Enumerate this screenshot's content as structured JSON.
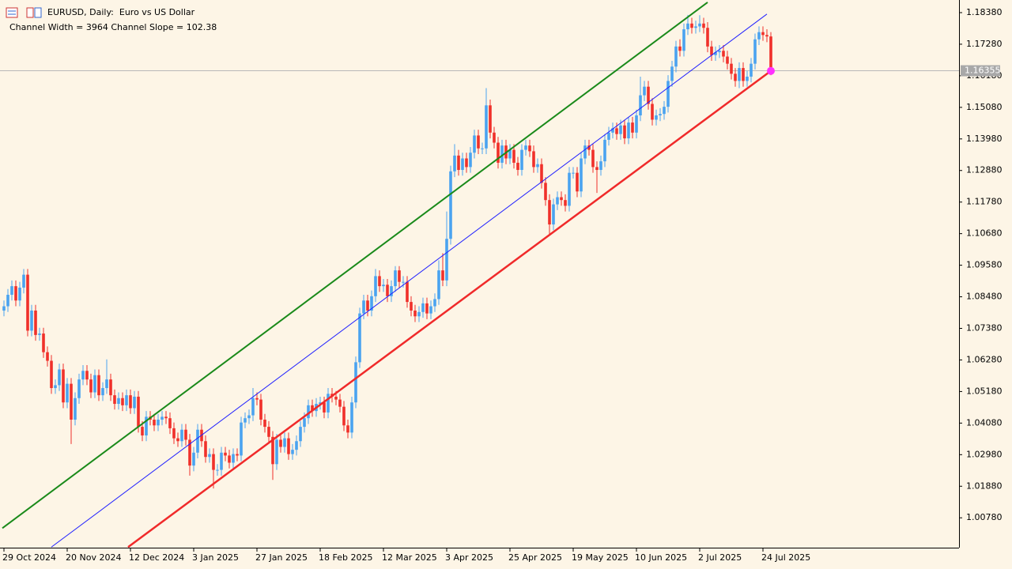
{
  "chart_data": {
    "type": "candlestick",
    "title": "EURUSD, Daily:  Euro vs US Dollar",
    "subtitle": "Channel Width = 3964 Channel Slope = 102.38",
    "up_color": "#4aa3f0",
    "down_color": "#f0302a",
    "background": "#fdf5e6",
    "xlim": [
      -1,
      241.6
    ],
    "ylim": [
      0.9974,
      1.1882
    ],
    "yticks": [
      {
        "value": 1.1838,
        "label": "1.18380"
      },
      {
        "value": 1.1728,
        "label": "1.17280"
      },
      {
        "value": 1.1618,
        "label": "1.16180"
      },
      {
        "value": 1.1508,
        "label": "1.15080"
      },
      {
        "value": 1.1398,
        "label": "1.13980"
      },
      {
        "value": 1.1288,
        "label": "1.12880"
      },
      {
        "value": 1.1178,
        "label": "1.11780"
      },
      {
        "value": 1.1068,
        "label": "1.10680"
      },
      {
        "value": 1.0958,
        "label": "1.09580"
      },
      {
        "value": 1.0848,
        "label": "1.08480"
      },
      {
        "value": 1.0738,
        "label": "1.07380"
      },
      {
        "value": 1.0628,
        "label": "1.06280"
      },
      {
        "value": 1.0518,
        "label": "1.05180"
      },
      {
        "value": 1.0408,
        "label": "1.04080"
      },
      {
        "value": 1.0298,
        "label": "1.02980"
      },
      {
        "value": 1.0188,
        "label": "1.01880"
      },
      {
        "value": 1.0078,
        "label": "1.00780"
      }
    ],
    "xticks": [
      {
        "value": 0,
        "label": "29 Oct 2024"
      },
      {
        "value": 16,
        "label": "20 Nov 2024"
      },
      {
        "value": 32,
        "label": "12 Dec 2024"
      },
      {
        "value": 48,
        "label": "3 Jan 2025"
      },
      {
        "value": 64,
        "label": "27 Jan 2025"
      },
      {
        "value": 80,
        "label": "18 Feb 2025"
      },
      {
        "value": 96,
        "label": "12 Mar 2025"
      },
      {
        "value": 112,
        "label": "3 Apr 2025"
      },
      {
        "value": 128,
        "label": "25 Apr 2025"
      },
      {
        "value": 144,
        "label": "19 May 2025"
      },
      {
        "value": 160,
        "label": "10 Jun 2025"
      },
      {
        "value": 176,
        "label": "2 Jul 2025"
      },
      {
        "value": 192,
        "label": "24 Jul 2025"
      }
    ],
    "current_price": {
      "value": 1.16355,
      "label": "1.16355"
    },
    "channel_lines": [
      {
        "color": "#1a8a1a",
        "width": 2,
        "x": [
          -0.4,
          178
        ],
        "values": [
          1.0042,
          1.1874
        ]
      },
      {
        "color": "#2020ff",
        "width": 1,
        "x": [
          12,
          193
        ],
        "values": [
          0.9976,
          1.1833
        ]
      },
      {
        "color": "#f02a2a",
        "width": 2.5,
        "x": [
          31.4,
          194
        ],
        "values": [
          0.9976,
          1.1635
        ],
        "end_marker_color": "#ff30ff"
      }
    ],
    "ohlc": [
      [
        1.08,
        1.0835,
        1.078,
        1.0815
      ],
      [
        1.0815,
        1.0875,
        1.0795,
        1.0855
      ],
      [
        1.0855,
        1.0905,
        1.0835,
        1.0885
      ],
      [
        1.0885,
        1.0905,
        1.0815,
        1.0835
      ],
      [
        1.0835,
        1.09,
        1.0815,
        1.088
      ],
      [
        1.088,
        1.0945,
        1.086,
        1.0925
      ],
      [
        1.0925,
        1.0945,
        1.071,
        1.073
      ],
      [
        1.073,
        1.082,
        1.071,
        1.08
      ],
      [
        1.08,
        1.082,
        1.0695,
        1.0715
      ],
      [
        1.0715,
        1.074,
        1.0695,
        1.072
      ],
      [
        1.072,
        1.074,
        1.0635,
        1.0655
      ],
      [
        1.0655,
        1.0675,
        1.0605,
        1.0625
      ],
      [
        1.0625,
        1.0645,
        1.051,
        1.053
      ],
      [
        1.053,
        1.056,
        1.051,
        1.054
      ],
      [
        1.054,
        1.0615,
        1.052,
        1.0595
      ],
      [
        1.0595,
        1.0615,
        1.046,
        1.048
      ],
      [
        1.048,
        1.0565,
        1.046,
        1.0545
      ],
      [
        1.0545,
        1.0565,
        1.0335,
        1.042
      ],
      [
        1.042,
        1.0515,
        1.04,
        1.0495
      ],
      [
        1.0495,
        1.058,
        1.0475,
        1.056
      ],
      [
        1.056,
        1.061,
        1.054,
        1.059
      ],
      [
        1.059,
        1.061,
        1.054,
        1.056
      ],
      [
        1.056,
        1.058,
        1.0495,
        1.0515
      ],
      [
        1.0515,
        1.0595,
        1.0495,
        1.0575
      ],
      [
        1.0575,
        1.0595,
        1.0485,
        1.0505
      ],
      [
        1.0505,
        1.055,
        1.0485,
        1.053
      ],
      [
        1.053,
        1.063,
        1.051,
        1.056
      ],
      [
        1.056,
        1.058,
        1.0485,
        1.0505
      ],
      [
        1.0505,
        1.0525,
        1.0455,
        1.0475
      ],
      [
        1.0475,
        1.0515,
        1.0455,
        1.0495
      ],
      [
        1.0495,
        1.0515,
        1.045,
        1.047
      ],
      [
        1.047,
        1.0525,
        1.045,
        1.0505
      ],
      [
        1.0505,
        1.0525,
        1.044,
        1.046
      ],
      [
        1.046,
        1.052,
        1.044,
        1.05
      ],
      [
        1.05,
        1.052,
        1.0375,
        1.0395
      ],
      [
        1.0395,
        1.0415,
        1.0345,
        1.0365
      ],
      [
        1.0365,
        1.045,
        1.0345,
        1.043
      ],
      [
        1.043,
        1.045,
        1.04,
        1.042
      ],
      [
        1.042,
        1.044,
        1.038,
        1.04
      ],
      [
        1.04,
        1.044,
        1.038,
        1.042
      ],
      [
        1.042,
        1.045,
        1.04,
        1.043
      ],
      [
        1.043,
        1.045,
        1.0405,
        1.0425
      ],
      [
        1.0425,
        1.0445,
        1.037,
        1.039
      ],
      [
        1.039,
        1.041,
        1.0335,
        1.0355
      ],
      [
        1.0355,
        1.0375,
        1.0325,
        1.0345
      ],
      [
        1.0345,
        1.0405,
        1.0325,
        1.0385
      ],
      [
        1.0385,
        1.0405,
        1.033,
        1.035
      ],
      [
        1.035,
        1.037,
        1.0225,
        1.026
      ],
      [
        1.026,
        1.0325,
        1.024,
        1.0305
      ],
      [
        1.0305,
        1.0405,
        1.0285,
        1.0385
      ],
      [
        1.0385,
        1.0405,
        1.0325,
        1.0345
      ],
      [
        1.0345,
        1.0365,
        1.027,
        1.029
      ],
      [
        1.029,
        1.032,
        1.027,
        1.03
      ],
      [
        1.03,
        1.032,
        1.018,
        1.0245
      ],
      [
        1.0245,
        1.0265,
        1.0225,
        1.0245
      ],
      [
        1.0245,
        1.0325,
        1.0225,
        1.0305
      ],
      [
        1.0305,
        1.0325,
        1.0275,
        1.0295
      ],
      [
        1.0295,
        1.0315,
        1.025,
        1.027
      ],
      [
        1.027,
        1.032,
        1.025,
        1.03
      ],
      [
        1.03,
        1.032,
        1.0275,
        1.0295
      ],
      [
        1.0295,
        1.043,
        1.0275,
        1.041
      ],
      [
        1.041,
        1.0445,
        1.039,
        1.0425
      ],
      [
        1.0425,
        1.0455,
        1.0405,
        1.0435
      ],
      [
        1.0435,
        1.053,
        1.0415,
        1.0495
      ],
      [
        1.0495,
        1.0515,
        1.047,
        1.049
      ],
      [
        1.049,
        1.051,
        1.04,
        1.042
      ],
      [
        1.042,
        1.044,
        1.0375,
        1.0395
      ],
      [
        1.0395,
        1.0415,
        1.034,
        1.036
      ],
      [
        1.036,
        1.038,
        1.021,
        1.0265
      ],
      [
        1.0265,
        1.037,
        1.0245,
        1.035
      ],
      [
        1.035,
        1.037,
        1.0305,
        1.0325
      ],
      [
        1.0325,
        1.0375,
        1.0305,
        1.0355
      ],
      [
        1.0355,
        1.0375,
        1.028,
        1.03
      ],
      [
        1.03,
        1.0335,
        1.028,
        1.0315
      ],
      [
        1.0315,
        1.0365,
        1.0295,
        1.0345
      ],
      [
        1.0345,
        1.0415,
        1.0325,
        1.0395
      ],
      [
        1.0395,
        1.0445,
        1.0375,
        1.0425
      ],
      [
        1.0425,
        1.049,
        1.0405,
        1.047
      ],
      [
        1.047,
        1.049,
        1.043,
        1.045
      ],
      [
        1.045,
        1.0495,
        1.043,
        1.0475
      ],
      [
        1.0475,
        1.05,
        1.0455,
        1.048
      ],
      [
        1.048,
        1.05,
        1.0425,
        1.0445
      ],
      [
        1.0445,
        1.053,
        1.0425,
        1.051
      ],
      [
        1.051,
        1.053,
        1.048,
        1.05
      ],
      [
        1.05,
        1.052,
        1.047,
        1.049
      ],
      [
        1.049,
        1.051,
        1.0445,
        1.0465
      ],
      [
        1.0465,
        1.0485,
        1.038,
        1.04
      ],
      [
        1.04,
        1.042,
        1.0355,
        1.0375
      ],
      [
        1.0375,
        1.05,
        1.0355,
        1.048
      ],
      [
        1.048,
        1.064,
        1.046,
        1.062
      ],
      [
        1.062,
        1.081,
        1.06,
        1.079
      ],
      [
        1.079,
        1.0855,
        1.077,
        1.0835
      ],
      [
        1.0835,
        1.0855,
        1.078,
        1.08
      ],
      [
        1.08,
        1.087,
        1.078,
        1.085
      ],
      [
        1.085,
        1.0945,
        1.083,
        1.092
      ],
      [
        1.092,
        1.094,
        1.0865,
        1.0885
      ],
      [
        1.0885,
        1.091,
        1.0865,
        1.089
      ],
      [
        1.089,
        1.091,
        1.083,
        1.085
      ],
      [
        1.085,
        1.0905,
        1.083,
        1.0885
      ],
      [
        1.0885,
        1.0955,
        1.0865,
        1.094
      ],
      [
        1.094,
        1.0955,
        1.088,
        1.09
      ],
      [
        1.09,
        1.092,
        1.088,
        1.09
      ],
      [
        1.09,
        1.092,
        1.081,
        1.083
      ],
      [
        1.083,
        1.085,
        1.078,
        1.08
      ],
      [
        1.08,
        1.082,
        1.076,
        1.078
      ],
      [
        1.078,
        1.0815,
        1.076,
        1.0795
      ],
      [
        1.0795,
        1.0845,
        1.0775,
        1.0825
      ],
      [
        1.0825,
        1.0845,
        1.077,
        1.079
      ],
      [
        1.079,
        1.0835,
        1.077,
        1.0815
      ],
      [
        1.0815,
        1.086,
        1.0795,
        1.084
      ],
      [
        1.084,
        1.0975,
        1.082,
        1.094
      ],
      [
        1.094,
        1.1,
        1.0885,
        1.0905
      ],
      [
        1.0905,
        1.1145,
        1.0885,
        1.105
      ],
      [
        1.105,
        1.1305,
        1.103,
        1.1285
      ],
      [
        1.1285,
        1.138,
        1.1265,
        1.134
      ],
      [
        1.134,
        1.136,
        1.127,
        1.129
      ],
      [
        1.129,
        1.135,
        1.127,
        1.133
      ],
      [
        1.133,
        1.135,
        1.128,
        1.13
      ],
      [
        1.13,
        1.137,
        1.128,
        1.135
      ],
      [
        1.135,
        1.143,
        1.133,
        1.141
      ],
      [
        1.141,
        1.143,
        1.1345,
        1.1365
      ],
      [
        1.1365,
        1.1385,
        1.1345,
        1.1365
      ],
      [
        1.1365,
        1.1575,
        1.1345,
        1.1515
      ],
      [
        1.1515,
        1.1535,
        1.14,
        1.142
      ],
      [
        1.142,
        1.144,
        1.1365,
        1.1385
      ],
      [
        1.1385,
        1.1405,
        1.1295,
        1.1315
      ],
      [
        1.1315,
        1.1395,
        1.1295,
        1.1375
      ],
      [
        1.1375,
        1.1395,
        1.131,
        1.133
      ],
      [
        1.133,
        1.138,
        1.131,
        1.136
      ],
      [
        1.136,
        1.138,
        1.1295,
        1.1315
      ],
      [
        1.1315,
        1.1335,
        1.127,
        1.129
      ],
      [
        1.129,
        1.138,
        1.127,
        1.136
      ],
      [
        1.136,
        1.1395,
        1.134,
        1.1375
      ],
      [
        1.1375,
        1.1395,
        1.1335,
        1.1355
      ],
      [
        1.1355,
        1.1375,
        1.128,
        1.13
      ],
      [
        1.13,
        1.133,
        1.128,
        1.131
      ],
      [
        1.131,
        1.133,
        1.1225,
        1.1245
      ],
      [
        1.1245,
        1.1265,
        1.1165,
        1.1185
      ],
      [
        1.1185,
        1.1205,
        1.1065,
        1.11
      ],
      [
        1.11,
        1.119,
        1.108,
        1.117
      ],
      [
        1.117,
        1.1215,
        1.115,
        1.1195
      ],
      [
        1.1195,
        1.1215,
        1.1165,
        1.1185
      ],
      [
        1.1185,
        1.1205,
        1.1145,
        1.1165
      ],
      [
        1.1165,
        1.13,
        1.1145,
        1.128
      ],
      [
        1.128,
        1.13,
        1.126,
        1.128
      ],
      [
        1.128,
        1.13,
        1.1195,
        1.1215
      ],
      [
        1.1215,
        1.135,
        1.1195,
        1.133
      ],
      [
        1.133,
        1.1395,
        1.131,
        1.1375
      ],
      [
        1.1375,
        1.1395,
        1.134,
        1.136
      ],
      [
        1.136,
        1.138,
        1.128,
        1.13
      ],
      [
        1.13,
        1.132,
        1.121,
        1.129
      ],
      [
        1.129,
        1.134,
        1.127,
        1.132
      ],
      [
        1.132,
        1.1415,
        1.13,
        1.1395
      ],
      [
        1.1395,
        1.144,
        1.1375,
        1.142
      ],
      [
        1.142,
        1.1455,
        1.14,
        1.1435
      ],
      [
        1.1435,
        1.1455,
        1.1395,
        1.1415
      ],
      [
        1.1415,
        1.1465,
        1.1395,
        1.1445
      ],
      [
        1.1445,
        1.1465,
        1.138,
        1.14
      ],
      [
        1.14,
        1.1475,
        1.138,
        1.1455
      ],
      [
        1.1455,
        1.1475,
        1.14,
        1.142
      ],
      [
        1.142,
        1.15,
        1.14,
        1.148
      ],
      [
        1.148,
        1.1615,
        1.146,
        1.155
      ],
      [
        1.155,
        1.16,
        1.153,
        1.158
      ],
      [
        1.158,
        1.16,
        1.15,
        1.152
      ],
      [
        1.152,
        1.154,
        1.1445,
        1.1465
      ],
      [
        1.1465,
        1.15,
        1.1445,
        1.148
      ],
      [
        1.148,
        1.1505,
        1.146,
        1.1485
      ],
      [
        1.1485,
        1.153,
        1.1465,
        1.151
      ],
      [
        1.151,
        1.162,
        1.149,
        1.16
      ],
      [
        1.16,
        1.167,
        1.158,
        1.165
      ],
      [
        1.165,
        1.174,
        1.163,
        1.172
      ],
      [
        1.172,
        1.1745,
        1.1685,
        1.1705
      ],
      [
        1.1705,
        1.18,
        1.1685,
        1.178
      ],
      [
        1.178,
        1.183,
        1.176,
        1.18
      ],
      [
        1.18,
        1.182,
        1.1765,
        1.1785
      ],
      [
        1.1785,
        1.181,
        1.1765,
        1.179
      ],
      [
        1.179,
        1.1829,
        1.177,
        1.18
      ],
      [
        1.18,
        1.182,
        1.1765,
        1.1785
      ],
      [
        1.1785,
        1.1805,
        1.17,
        1.172
      ],
      [
        1.172,
        1.174,
        1.167,
        1.169
      ],
      [
        1.169,
        1.172,
        1.167,
        1.17
      ],
      [
        1.17,
        1.1725,
        1.168,
        1.1705
      ],
      [
        1.1705,
        1.1725,
        1.1665,
        1.1685
      ],
      [
        1.1685,
        1.1705,
        1.164,
        1.166
      ],
      [
        1.166,
        1.168,
        1.1605,
        1.1625
      ],
      [
        1.1625,
        1.1645,
        1.158,
        1.16
      ],
      [
        1.16,
        1.1665,
        1.1575,
        1.1645
      ],
      [
        1.1645,
        1.1665,
        1.158,
        1.16
      ],
      [
        1.16,
        1.1635,
        1.158,
        1.1615
      ],
      [
        1.1615,
        1.168,
        1.1595,
        1.166
      ],
      [
        1.166,
        1.1765,
        1.164,
        1.1745
      ],
      [
        1.1745,
        1.179,
        1.1725,
        1.177
      ],
      [
        1.177,
        1.179,
        1.174,
        1.176
      ],
      [
        1.176,
        1.178,
        1.1735,
        1.1755
      ],
      [
        1.1755,
        1.177,
        1.162,
        1.1635
      ]
    ]
  }
}
